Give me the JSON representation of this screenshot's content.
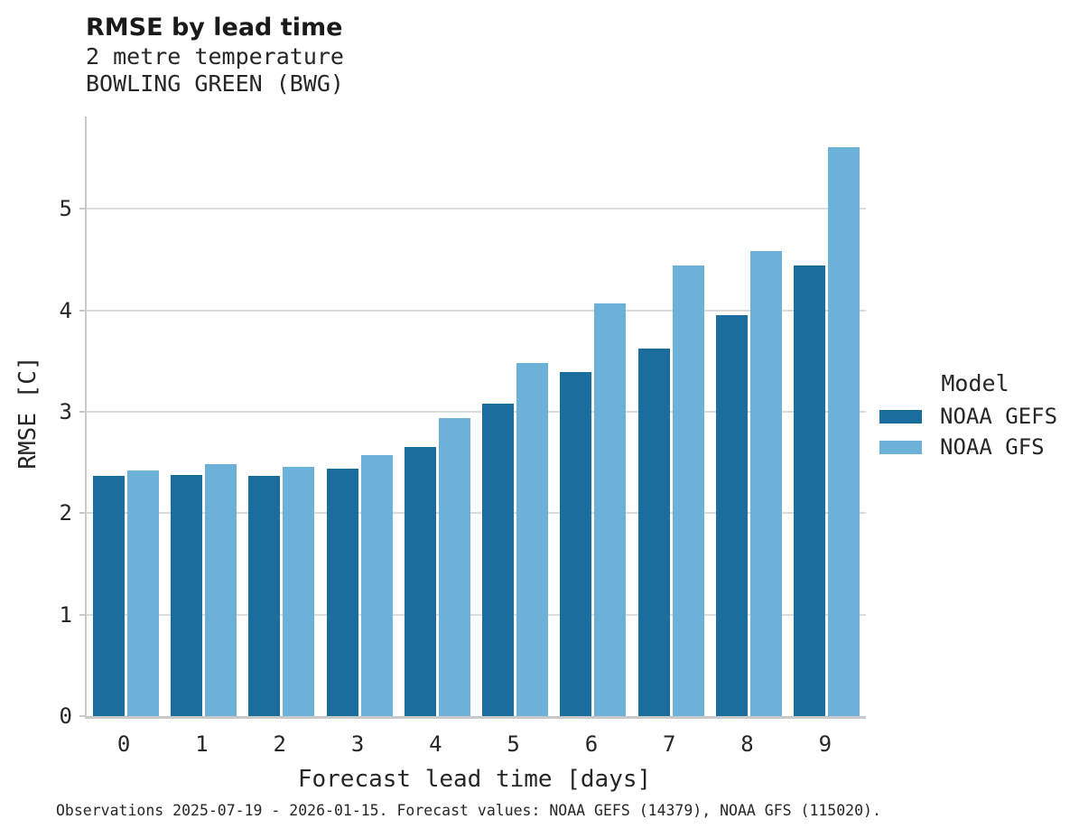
{
  "header": {
    "title": "RMSE by lead time",
    "subtitle1": "2 metre temperature",
    "subtitle2": "BOWLING GREEN (BWG)"
  },
  "chart_data": {
    "type": "bar",
    "title": "RMSE by lead time",
    "subtitle": [
      "2 metre temperature",
      "BOWLING GREEN (BWG)"
    ],
    "categories": [
      "0",
      "1",
      "2",
      "3",
      "4",
      "5",
      "6",
      "7",
      "8",
      "9"
    ],
    "series": [
      {
        "name": "NOAA GEFS",
        "color": "#1b6d9e",
        "values": [
          2.37,
          2.38,
          2.37,
          2.44,
          2.65,
          3.08,
          3.39,
          3.62,
          3.95,
          4.44
        ]
      },
      {
        "name": "NOAA GFS",
        "color": "#6cb1d8",
        "values": [
          2.42,
          2.48,
          2.46,
          2.57,
          2.94,
          3.48,
          4.07,
          4.44,
          4.58,
          5.61
        ]
      }
    ],
    "xlabel": "Forecast lead time [days]",
    "ylabel": "RMSE [C]",
    "ylim": [
      0,
      5.91
    ],
    "yticks": [
      0,
      1,
      2,
      3,
      4,
      5
    ],
    "legend_title": "Model",
    "legend_position": "right of plot, middle",
    "grid": "horizontal gridlines at integer ticks",
    "style": {
      "grid_color": "#dcdcdc",
      "axis_color": "#c9c9c9",
      "text_color": "#262626"
    }
  },
  "footer": {
    "note": "Observations 2025-07-19 - 2026-01-15. Forecast values: NOAA GEFS (14379), NOAA GFS (115020)."
  }
}
